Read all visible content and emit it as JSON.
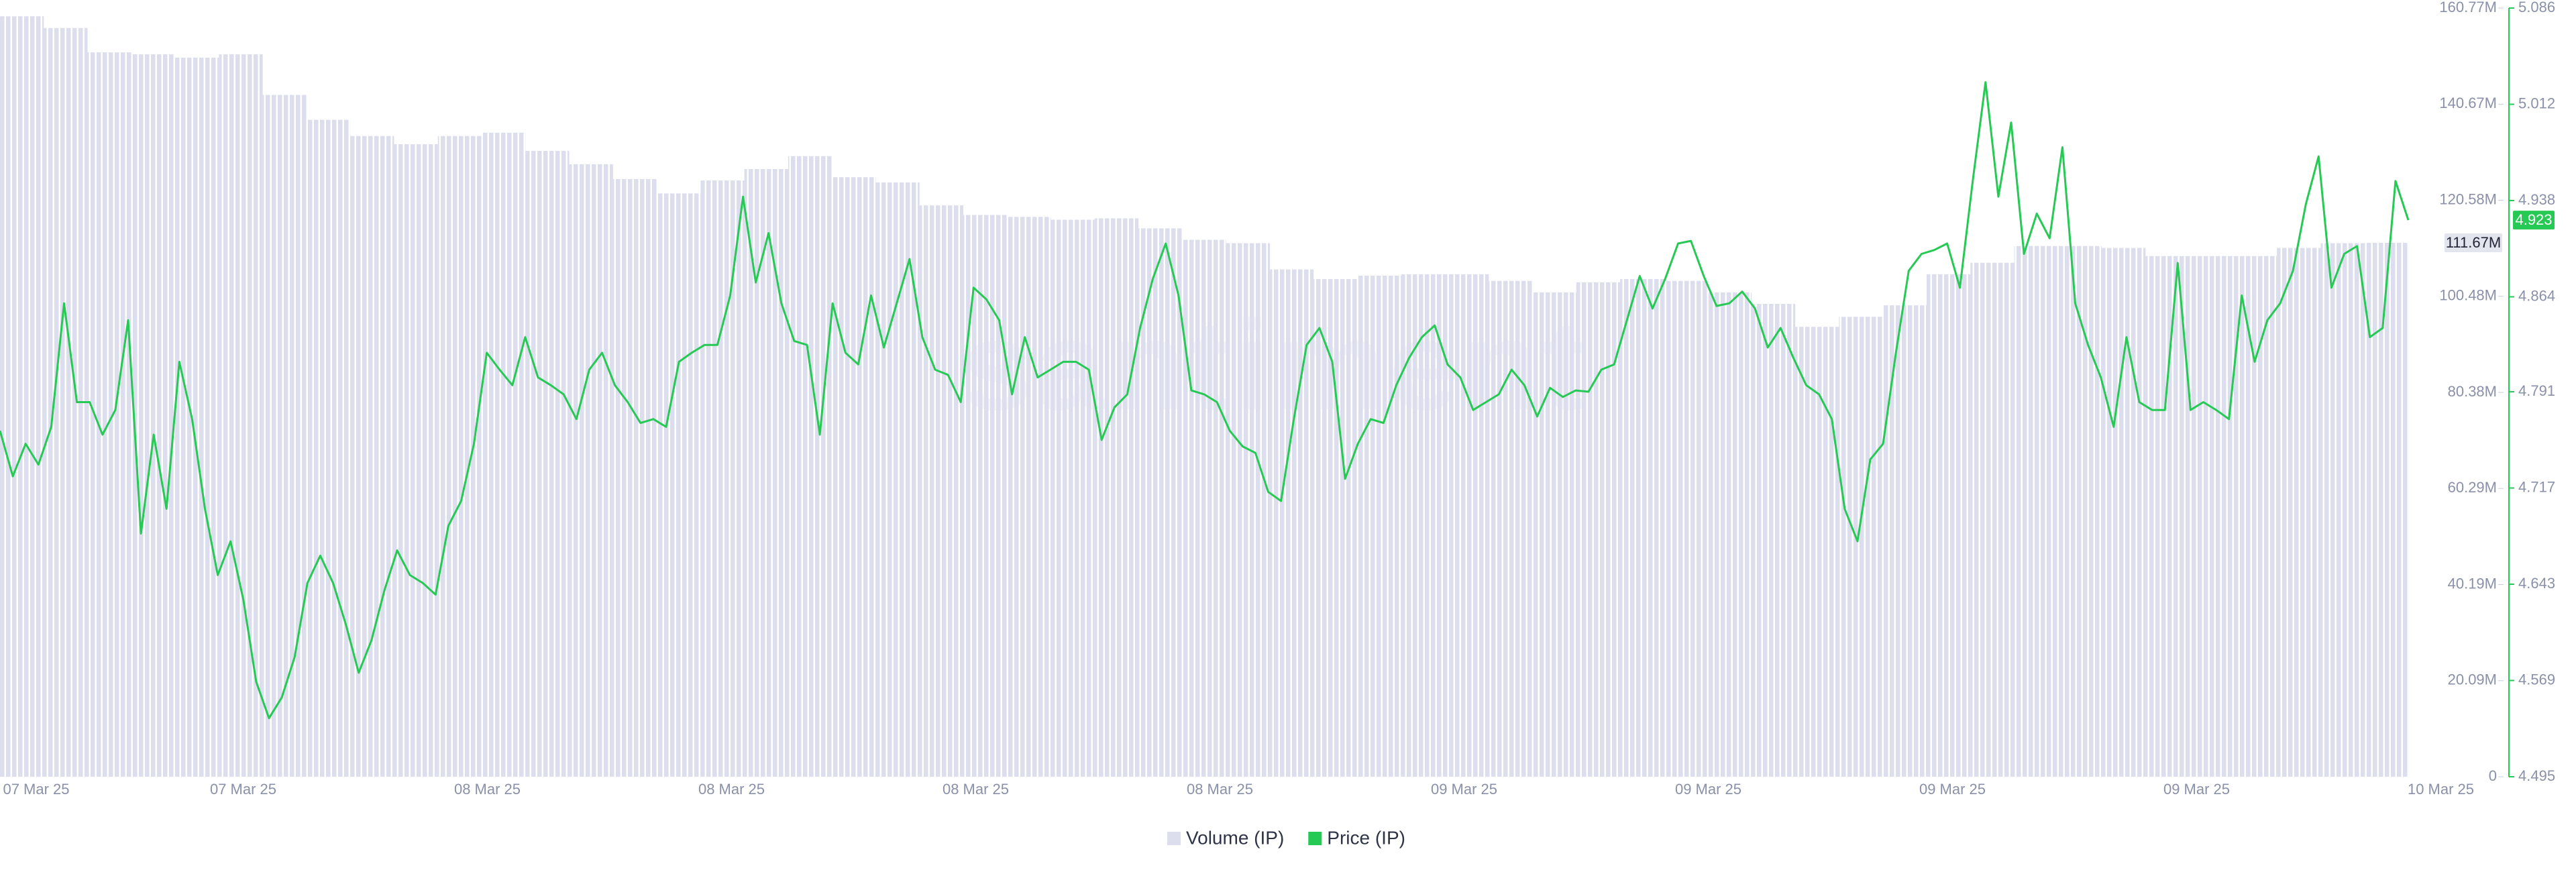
{
  "chart_data": {
    "type": "bar-line",
    "watermark": "santiment",
    "x_labels": [
      "07 Mar 25",
      "07 Mar 25",
      "08 Mar 25",
      "08 Mar 25",
      "08 Mar 25",
      "08 Mar 25",
      "09 Mar 25",
      "09 Mar 25",
      "09 Mar 25",
      "09 Mar 25",
      "10 Mar 25"
    ],
    "ylim": [
      0,
      160.77
    ],
    "yticks": [
      0,
      {
        "value": 20.09,
        "label": "20.09M"
      },
      {
        "value": 40.19,
        "label": "40.19M"
      },
      {
        "value": 60.29,
        "label": "60.29M"
      },
      {
        "value": 80.38,
        "label": "80.38M"
      },
      {
        "value": 100.48,
        "label": "100.48M"
      },
      {
        "value": 120.58,
        "label": "120.58M"
      },
      {
        "value": 140.67,
        "label": "140.67M"
      },
      {
        "value": 160.77,
        "label": "160.77M"
      }
    ],
    "y2lim": [
      4.495,
      5.086
    ],
    "y2ticks": [
      4.495,
      4.569,
      4.643,
      4.717,
      4.791,
      4.864,
      4.938,
      5.012,
      5.086
    ],
    "series": [
      {
        "name": "Volume (IP)",
        "type": "bar",
        "color": "#dcdded",
        "values": [
          159.05,
          156.6,
          151.5,
          151.1,
          150.4,
          151.1,
          142.6,
          137.4,
          134.0,
          132.3,
          134.0,
          134.7,
          130.9,
          128.1,
          125.0,
          122.0,
          124.7,
          127.1,
          129.8,
          125.4,
          124.3,
          119.5,
          117.5,
          117.1,
          116.5,
          116.8,
          114.7,
          112.3,
          111.6,
          106.1,
          104.1,
          104.8,
          105.1,
          105.1,
          103.7,
          101.3,
          103.4,
          104.1,
          103.7,
          101.3,
          98.9,
          94.1,
          96.2,
          98.6,
          105.1,
          107.5,
          111.0,
          111.0,
          110.6,
          108.9,
          108.9,
          108.9,
          110.6,
          111.6,
          111.67
        ],
        "last_label": {
          "value": 111.67,
          "label": "111.67M"
        }
      },
      {
        "name": "Price (IP)",
        "type": "line",
        "axis": "y2",
        "color": "#26c953",
        "values": [
          4.761,
          4.726,
          4.751,
          4.735,
          4.764,
          4.859,
          4.783,
          4.783,
          4.758,
          4.777,
          4.846,
          4.682,
          4.758,
          4.701,
          4.814,
          4.77,
          4.701,
          4.65,
          4.676,
          4.631,
          4.568,
          4.54,
          4.556,
          4.587,
          4.644,
          4.665,
          4.644,
          4.612,
          4.575,
          4.6,
          4.638,
          4.669,
          4.65,
          4.644,
          4.635,
          4.688,
          4.707,
          4.751,
          4.821,
          4.808,
          4.796,
          4.833,
          4.802,
          4.796,
          4.789,
          4.77,
          4.808,
          4.821,
          4.796,
          4.783,
          4.767,
          4.77,
          4.764,
          4.814,
          4.821,
          4.827,
          4.827,
          4.865,
          4.941,
          4.875,
          4.913,
          4.859,
          4.83,
          4.827,
          4.758,
          4.859,
          4.821,
          4.812,
          4.865,
          4.825,
          4.859,
          4.893,
          4.833,
          4.808,
          4.804,
          4.783,
          4.871,
          4.862,
          4.846,
          4.789,
          4.833,
          4.802,
          4.808,
          4.814,
          4.814,
          4.808,
          4.754,
          4.779,
          4.789,
          4.84,
          4.878,
          4.905,
          4.865,
          4.792,
          4.789,
          4.783,
          4.761,
          4.749,
          4.744,
          4.714,
          4.707,
          4.77,
          4.827,
          4.84,
          4.814,
          4.724,
          4.751,
          4.77,
          4.767,
          4.796,
          4.817,
          4.833,
          4.842,
          4.812,
          4.802,
          4.777,
          4.783,
          4.789,
          4.808,
          4.796,
          4.772,
          4.794,
          4.787,
          4.792,
          4.791,
          4.808,
          4.812,
          4.846,
          4.88,
          4.855,
          4.878,
          4.905,
          4.907,
          4.88,
          4.857,
          4.859,
          4.868,
          4.855,
          4.825,
          4.84,
          4.817,
          4.796,
          4.789,
          4.77,
          4.701,
          4.676,
          4.739,
          4.751,
          4.821,
          4.884,
          4.897,
          4.9,
          4.905,
          4.871,
          4.953,
          5.029,
          4.941,
          4.998,
          4.897,
          4.928,
          4.909,
          4.979,
          4.859,
          4.827,
          4.802,
          4.764,
          4.833,
          4.783,
          4.777,
          4.777,
          4.89,
          4.777,
          4.783,
          4.777,
          4.77,
          4.865,
          4.814,
          4.846,
          4.859,
          4.884,
          4.935,
          4.972,
          4.871,
          4.897,
          4.903,
          4.833,
          4.84,
          4.953,
          4.923
        ],
        "last_label": 4.923
      }
    ]
  }
}
